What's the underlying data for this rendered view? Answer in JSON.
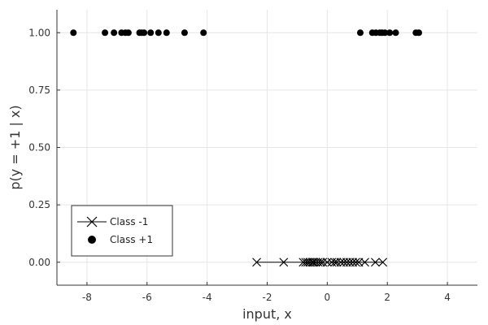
{
  "chart_data": {
    "type": "scatter",
    "title": "",
    "xlabel": "input, x",
    "ylabel": "p(y = +1 | x)",
    "xlim": [
      -9.0,
      5.0
    ],
    "ylim": [
      -0.1,
      1.1
    ],
    "grid": true,
    "legend_position": "bottom-left",
    "x_ticks": [
      -8,
      -6,
      -4,
      -2,
      0,
      2,
      4
    ],
    "x_tick_labels": [
      "-8",
      "-6",
      "-4",
      "-2",
      "0",
      "2",
      "4"
    ],
    "y_ticks": [
      0.0,
      0.25,
      0.5,
      0.75,
      1.0
    ],
    "y_tick_labels": [
      "0.00",
      "0.25",
      "0.50",
      "0.75",
      "1.00"
    ],
    "series": [
      {
        "name": "Class -1",
        "marker": "x",
        "line": true,
        "color": "#000000",
        "x": [
          -2.35,
          -1.45,
          -0.8,
          -0.72,
          -0.65,
          -0.58,
          -0.5,
          -0.45,
          -0.38,
          -0.3,
          -0.22,
          -0.15,
          0.0,
          0.15,
          0.25,
          0.32,
          0.45,
          0.55,
          0.65,
          0.75,
          0.85,
          0.95,
          1.05,
          1.25,
          1.6,
          1.85
        ],
        "y": [
          0,
          0,
          0,
          0,
          0,
          0,
          0,
          0,
          0,
          0,
          0,
          0,
          0,
          0,
          0,
          0,
          0,
          0,
          0,
          0,
          0,
          0,
          0,
          0,
          0,
          0
        ]
      },
      {
        "name": "Class +1",
        "marker": "circle",
        "line": false,
        "color": "#000000",
        "x": [
          -8.45,
          -7.4,
          -7.1,
          -6.85,
          -6.72,
          -6.62,
          -6.25,
          -6.18,
          -6.1,
          -5.88,
          -5.62,
          -5.35,
          -4.75,
          -4.12,
          1.1,
          1.5,
          1.62,
          1.75,
          1.82,
          1.92,
          2.08,
          2.28,
          2.95,
          3.05
        ],
        "y": [
          1,
          1,
          1,
          1,
          1,
          1,
          1,
          1,
          1,
          1,
          1,
          1,
          1,
          1,
          1,
          1,
          1,
          1,
          1,
          1,
          1,
          1,
          1,
          1
        ]
      }
    ]
  }
}
